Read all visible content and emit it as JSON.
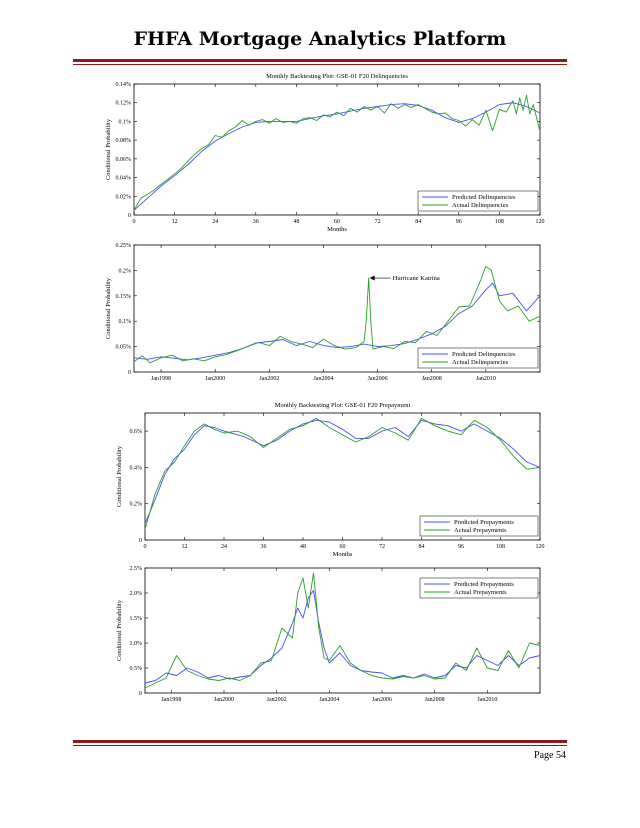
{
  "document": {
    "title": "FHFA Mortgage Analytics Platform",
    "page_label": "Page 54",
    "accent_color": "#8b1a1a"
  },
  "colors": {
    "predicted": "#4a4cff",
    "actual": "#2aa02a"
  },
  "chart_data": [
    {
      "id": "del-months",
      "type": "line",
      "title": "Monthly Backtesting Plot: GSE-01 F20 Delinquencies",
      "xlabel": "Months",
      "ylabel": "Conditional Probability",
      "xlim": [
        0,
        120
      ],
      "ylim": [
        0,
        0.14
      ],
      "xticks": [
        0,
        12,
        24,
        36,
        48,
        60,
        72,
        84,
        96,
        108,
        120
      ],
      "xtick_labels": [
        "0",
        "12",
        "24",
        "36",
        "48",
        "60",
        "72",
        "84",
        "96",
        "108",
        "120"
      ],
      "yticks": [
        0,
        0.02,
        0.04,
        0.06,
        0.08,
        0.1,
        0.12,
        0.14
      ],
      "ytick_labels": [
        "0",
        "0.02%",
        "0.04%",
        "0.06%",
        "0.08%",
        "0.1%",
        "0.12%",
        "0.14%"
      ],
      "legend_position": "bottom-right",
      "series": [
        {
          "name": "Predicted Delinquencies",
          "color": "#4a4cff",
          "x": [
            0,
            4,
            8,
            12,
            16,
            20,
            24,
            28,
            32,
            36,
            40,
            44,
            48,
            52,
            56,
            60,
            64,
            68,
            72,
            76,
            80,
            84,
            88,
            92,
            96,
            100,
            104,
            108,
            112,
            116,
            120
          ],
          "y": [
            0.005,
            0.018,
            0.031,
            0.042,
            0.054,
            0.068,
            0.079,
            0.087,
            0.094,
            0.099,
            0.1,
            0.1,
            0.1,
            0.103,
            0.106,
            0.108,
            0.111,
            0.114,
            0.116,
            0.118,
            0.119,
            0.117,
            0.112,
            0.104,
            0.099,
            0.103,
            0.11,
            0.118,
            0.12,
            0.116,
            0.109
          ]
        },
        {
          "name": "Actual Delinquencies",
          "color": "#2aa02a",
          "x": [
            0,
            2,
            4,
            6,
            8,
            10,
            12,
            14,
            16,
            18,
            20,
            22,
            24,
            26,
            28,
            30,
            32,
            34,
            36,
            38,
            40,
            42,
            44,
            46,
            48,
            50,
            52,
            54,
            56,
            58,
            60,
            62,
            64,
            66,
            68,
            70,
            72,
            74,
            76,
            78,
            80,
            82,
            84,
            86,
            88,
            90,
            92,
            94,
            96,
            98,
            100,
            102,
            104,
            106,
            108,
            110,
            112,
            113,
            114,
            115,
            116,
            117,
            118,
            119,
            120
          ],
          "y": [
            0.005,
            0.018,
            0.022,
            0.027,
            0.033,
            0.038,
            0.044,
            0.05,
            0.058,
            0.065,
            0.071,
            0.075,
            0.085,
            0.083,
            0.09,
            0.094,
            0.101,
            0.096,
            0.1,
            0.102,
            0.098,
            0.103,
            0.099,
            0.1,
            0.098,
            0.103,
            0.104,
            0.101,
            0.107,
            0.105,
            0.11,
            0.106,
            0.114,
            0.11,
            0.116,
            0.112,
            0.116,
            0.109,
            0.119,
            0.114,
            0.118,
            0.115,
            0.118,
            0.114,
            0.11,
            0.108,
            0.109,
            0.103,
            0.101,
            0.095,
            0.102,
            0.096,
            0.112,
            0.09,
            0.113,
            0.11,
            0.122,
            0.108,
            0.125,
            0.112,
            0.128,
            0.108,
            0.118,
            0.104,
            0.089
          ]
        }
      ]
    },
    {
      "id": "del-dates",
      "type": "line",
      "title": "",
      "xlabel": "",
      "ylabel": "Conditional Probability",
      "xlim": [
        1997.0,
        2012.0
      ],
      "ylim": [
        0,
        0.25
      ],
      "xticks": [
        1998,
        2000,
        2002,
        2004,
        2006,
        2008,
        2010
      ],
      "xtick_labels": [
        "Jan1998",
        "Jan2000",
        "Jan2002",
        "Jan2004",
        "Jan2006",
        "Jan2008",
        "Jan2010"
      ],
      "yticks": [
        0,
        0.05,
        0.1,
        0.15,
        0.2,
        0.25
      ],
      "ytick_labels": [
        "0",
        "0.05%",
        "0.1%",
        "0.15%",
        "0.2%",
        "0.25%"
      ],
      "legend_position": "bottom-right",
      "annotation": {
        "text": "Hurricane Katrina",
        "x": 2005.67,
        "y": 0.185
      },
      "series": [
        {
          "name": "Predicted Delinquencies",
          "color": "#4a4cff",
          "x": [
            1997.0,
            1997.5,
            1998.0,
            1998.5,
            1999.0,
            1999.5,
            2000.0,
            2000.5,
            2001.0,
            2001.5,
            2002.0,
            2002.5,
            2003.0,
            2003.5,
            2004.0,
            2004.5,
            2005.0,
            2005.5,
            2006.0,
            2006.5,
            2007.0,
            2007.5,
            2008.0,
            2008.5,
            2009.0,
            2009.5,
            2010.0,
            2010.25,
            2010.5,
            2011.0,
            2011.5,
            2012.0
          ],
          "y": [
            0.028,
            0.025,
            0.03,
            0.027,
            0.024,
            0.028,
            0.033,
            0.038,
            0.046,
            0.057,
            0.06,
            0.064,
            0.052,
            0.06,
            0.052,
            0.048,
            0.05,
            0.055,
            0.05,
            0.052,
            0.056,
            0.065,
            0.075,
            0.09,
            0.115,
            0.13,
            0.162,
            0.175,
            0.15,
            0.155,
            0.12,
            0.15
          ]
        },
        {
          "name": "Actual Delinquencies",
          "color": "#2aa02a",
          "x": [
            1997.0,
            1997.3,
            1997.6,
            1998.0,
            1998.4,
            1998.8,
            1999.2,
            1999.6,
            2000.0,
            2000.4,
            2000.8,
            2001.2,
            2001.6,
            2002.0,
            2002.4,
            2002.8,
            2003.2,
            2003.6,
            2004.0,
            2004.4,
            2004.8,
            2005.2,
            2005.5,
            2005.58,
            2005.67,
            2005.75,
            2005.83,
            2006.2,
            2006.6,
            2007.0,
            2007.4,
            2007.8,
            2008.2,
            2008.6,
            2009.0,
            2009.4,
            2009.8,
            2010.0,
            2010.2,
            2010.5,
            2010.8,
            2011.2,
            2011.6,
            2012.0
          ],
          "y": [
            0.02,
            0.032,
            0.018,
            0.028,
            0.033,
            0.022,
            0.026,
            0.022,
            0.03,
            0.034,
            0.042,
            0.05,
            0.058,
            0.052,
            0.07,
            0.06,
            0.055,
            0.048,
            0.065,
            0.052,
            0.045,
            0.048,
            0.06,
            0.1,
            0.185,
            0.1,
            0.045,
            0.05,
            0.046,
            0.06,
            0.058,
            0.08,
            0.072,
            0.1,
            0.128,
            0.13,
            0.18,
            0.208,
            0.2,
            0.14,
            0.12,
            0.13,
            0.1,
            0.11
          ]
        }
      ]
    },
    {
      "id": "pre-months",
      "type": "line",
      "title": "Monthly Backtesting Plot: GSE-01 F20 Prepayment",
      "xlabel": "Months",
      "ylabel": "Conditional Probability",
      "xlim": [
        0,
        120
      ],
      "ylim": [
        0,
        0.7
      ],
      "xticks": [
        0,
        12,
        24,
        36,
        48,
        60,
        72,
        84,
        96,
        108,
        120
      ],
      "xtick_labels": [
        "0",
        "12",
        "24",
        "36",
        "48",
        "60",
        "72",
        "84",
        "96",
        "108",
        "120"
      ],
      "yticks": [
        0,
        0.2,
        0.4,
        0.6
      ],
      "ytick_labels": [
        "0",
        "0.2%",
        "0.4%",
        "0.6%"
      ],
      "legend_position": "bottom-right",
      "series": [
        {
          "name": "Predicted Prepayments",
          "color": "#4a4cff",
          "x": [
            0,
            3,
            6,
            9,
            12,
            15,
            18,
            21,
            24,
            30,
            36,
            40,
            44,
            48,
            52,
            56,
            60,
            64,
            68,
            72,
            76,
            80,
            84,
            88,
            92,
            96,
            100,
            104,
            108,
            112,
            116,
            120
          ],
          "y": [
            0.09,
            0.22,
            0.36,
            0.45,
            0.5,
            0.58,
            0.63,
            0.62,
            0.6,
            0.57,
            0.52,
            0.55,
            0.6,
            0.64,
            0.66,
            0.65,
            0.61,
            0.56,
            0.56,
            0.6,
            0.62,
            0.57,
            0.66,
            0.64,
            0.63,
            0.6,
            0.64,
            0.6,
            0.56,
            0.5,
            0.43,
            0.4
          ]
        },
        {
          "name": "Actual Prepayments",
          "color": "#2aa02a",
          "x": [
            0,
            3,
            6,
            9,
            12,
            15,
            18,
            21,
            24,
            28,
            32,
            36,
            40,
            44,
            48,
            52,
            56,
            60,
            64,
            68,
            72,
            76,
            80,
            84,
            88,
            92,
            96,
            100,
            104,
            108,
            112,
            116,
            120
          ],
          "y": [
            0.06,
            0.25,
            0.38,
            0.43,
            0.52,
            0.6,
            0.64,
            0.61,
            0.59,
            0.6,
            0.57,
            0.51,
            0.56,
            0.61,
            0.63,
            0.67,
            0.62,
            0.58,
            0.54,
            0.57,
            0.62,
            0.59,
            0.55,
            0.67,
            0.63,
            0.6,
            0.58,
            0.66,
            0.62,
            0.55,
            0.46,
            0.39,
            0.4
          ]
        }
      ]
    },
    {
      "id": "pre-dates",
      "type": "line",
      "title": "",
      "xlabel": "",
      "ylabel": "Conditional Probability",
      "xlim": [
        1997.0,
        2012.0
      ],
      "ylim": [
        0,
        2.5
      ],
      "xticks": [
        1998,
        2000,
        2002,
        2004,
        2006,
        2008,
        2010
      ],
      "xtick_labels": [
        "Jan1998",
        "Jan2000",
        "Jan2002",
        "Jan2004",
        "Jan2006",
        "Jan2008",
        "Jan2010"
      ],
      "yticks": [
        0,
        0.5,
        1.0,
        1.5,
        2.0,
        2.5
      ],
      "ytick_labels": [
        "0",
        "0.5%",
        "1.0%",
        "1.5%",
        "2.0%",
        "2.5%"
      ],
      "legend_position": "top-right",
      "series": [
        {
          "name": "Predicted Prepayments",
          "color": "#4a4cff",
          "x": [
            1997.0,
            1997.4,
            1997.8,
            1998.2,
            1998.6,
            1999.0,
            1999.4,
            1999.8,
            2000.2,
            2000.6,
            2001.0,
            2001.4,
            2001.8,
            2002.2,
            2002.6,
            2002.8,
            2003.0,
            2003.2,
            2003.4,
            2003.6,
            2003.8,
            2004.0,
            2004.4,
            2004.8,
            2005.2,
            2005.6,
            2006.0,
            2006.4,
            2006.8,
            2007.2,
            2007.6,
            2008.0,
            2008.4,
            2008.8,
            2009.2,
            2009.6,
            2010.0,
            2010.4,
            2010.8,
            2011.2,
            2011.6,
            2012.0
          ],
          "y": [
            0.2,
            0.25,
            0.4,
            0.35,
            0.5,
            0.42,
            0.3,
            0.35,
            0.28,
            0.32,
            0.35,
            0.55,
            0.7,
            0.9,
            1.4,
            1.7,
            1.5,
            1.9,
            2.05,
            1.4,
            0.9,
            0.6,
            0.8,
            0.55,
            0.45,
            0.42,
            0.4,
            0.3,
            0.35,
            0.3,
            0.38,
            0.3,
            0.35,
            0.55,
            0.5,
            0.75,
            0.65,
            0.55,
            0.75,
            0.55,
            0.7,
            0.75
          ]
        },
        {
          "name": "Actual Prepayments",
          "color": "#2aa02a",
          "x": [
            1997.0,
            1997.4,
            1997.8,
            1998.2,
            1998.6,
            1999.0,
            1999.4,
            1999.8,
            2000.2,
            2000.6,
            2001.0,
            2001.4,
            2001.8,
            2002.2,
            2002.6,
            2002.8,
            2003.0,
            2003.2,
            2003.4,
            2003.6,
            2003.8,
            2004.0,
            2004.4,
            2004.8,
            2005.2,
            2005.6,
            2006.0,
            2006.4,
            2006.8,
            2007.2,
            2007.6,
            2008.0,
            2008.4,
            2008.8,
            2009.2,
            2009.6,
            2010.0,
            2010.4,
            2010.8,
            2011.2,
            2011.6,
            2012.0
          ],
          "y": [
            0.1,
            0.2,
            0.3,
            0.75,
            0.45,
            0.35,
            0.28,
            0.25,
            0.3,
            0.25,
            0.35,
            0.6,
            0.65,
            1.3,
            1.1,
            2.0,
            2.3,
            1.7,
            2.4,
            1.3,
            0.7,
            0.65,
            0.95,
            0.6,
            0.45,
            0.35,
            0.3,
            0.28,
            0.33,
            0.3,
            0.35,
            0.28,
            0.3,
            0.6,
            0.45,
            0.9,
            0.5,
            0.45,
            0.85,
            0.5,
            1.0,
            0.95
          ]
        }
      ]
    }
  ]
}
